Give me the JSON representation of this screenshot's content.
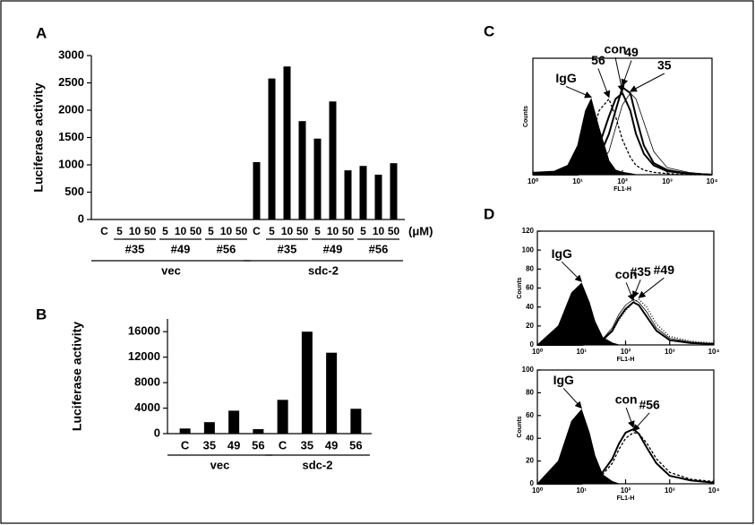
{
  "chart_data": [
    {
      "type": "bar",
      "panel": "A",
      "ylabel": "Luciferase activity",
      "color": "#000000",
      "categories": [
        "C",
        "5",
        "10",
        "50",
        "5",
        "10",
        "50",
        "5",
        "10",
        "50",
        "C",
        "5",
        "10",
        "50",
        "5",
        "10",
        "50",
        "5",
        "10",
        "50"
      ],
      "values": [
        0,
        0,
        0,
        0,
        0,
        0,
        0,
        0,
        0,
        0,
        1050,
        2580,
        2800,
        1800,
        1480,
        2160,
        900,
        980,
        820,
        1030
      ],
      "subgroups": [
        "#35",
        "#49",
        "#56",
        "#35",
        "#49",
        "#56"
      ],
      "groups": [
        "vec",
        "sdc-2"
      ],
      "unit": "(μM)",
      "ylim": [
        0,
        3000
      ],
      "yticks": [
        0,
        500,
        1000,
        1500,
        2000,
        2500,
        3000
      ]
    },
    {
      "type": "bar",
      "panel": "B",
      "ylabel": "Luciferase activity",
      "color": "#000000",
      "categories": [
        "C",
        "35",
        "49",
        "56",
        "C",
        "35",
        "49",
        "56"
      ],
      "values": [
        800,
        1800,
        3600,
        700,
        5300,
        16000,
        12700,
        3900
      ],
      "groups": [
        "vec",
        "sdc-2"
      ],
      "ylim": [
        0,
        18000
      ],
      "yticks": [
        0,
        4000,
        8000,
        12000,
        16000
      ]
    },
    {
      "type": "flow",
      "panel": "C",
      "xlabel": "FL1-H",
      "ylabel": "Counts",
      "log_x": true,
      "x": [
        1,
        3,
        6,
        10,
        15,
        20,
        30,
        50,
        70,
        100,
        150,
        200,
        300,
        500,
        1000,
        3000,
        10000
      ],
      "series": [
        {
          "name": "IgG",
          "color": "#000000",
          "style": "filled",
          "values": [
            2,
            3,
            8,
            25,
            55,
            65,
            40,
            12,
            4,
            2,
            1,
            0,
            0,
            0,
            0,
            0,
            0
          ]
        },
        {
          "name": "56",
          "color": "#000000",
          "style": "dashed",
          "values": [
            0,
            0,
            1,
            5,
            15,
            30,
            55,
            65,
            50,
            30,
            15,
            8,
            4,
            2,
            1,
            0,
            0
          ]
        },
        {
          "name": "con",
          "color": "#000000",
          "style": "solid",
          "values": [
            0,
            0,
            0,
            1,
            4,
            10,
            25,
            50,
            65,
            70,
            55,
            35,
            18,
            8,
            3,
            1,
            0
          ]
        },
        {
          "name": "49",
          "color": "#000000",
          "style": "solid",
          "values": [
            0,
            0,
            0,
            0,
            2,
            5,
            15,
            35,
            55,
            75,
            70,
            50,
            25,
            10,
            4,
            1,
            0
          ]
        },
        {
          "name": "35",
          "color": "#000000",
          "style": "thin",
          "values": [
            0,
            0,
            0,
            0,
            1,
            3,
            8,
            20,
            40,
            60,
            70,
            65,
            45,
            20,
            6,
            2,
            0
          ]
        }
      ],
      "xlim": [
        1,
        10000
      ],
      "ylim": [
        0,
        100
      ],
      "xticks": [
        {
          "value": 1,
          "label": "10⁰"
        },
        {
          "value": 10,
          "label": "10¹"
        },
        {
          "value": 100,
          "label": "10²"
        },
        {
          "value": 1000,
          "label": "10³"
        },
        {
          "value": 10000,
          "label": "10⁴"
        }
      ]
    },
    {
      "type": "flow",
      "panel": "D",
      "xlabel": "FL1-H",
      "ylabel": "Counts",
      "log_x": true,
      "x": [
        1,
        3,
        6,
        10,
        15,
        20,
        30,
        50,
        70,
        100,
        150,
        200,
        300,
        500,
        1000,
        3000,
        10000
      ],
      "series": [
        {
          "name": "IgG",
          "color": "#000000",
          "style": "filled",
          "values": [
            0,
            20,
            55,
            65,
            45,
            25,
            8,
            2,
            0,
            0,
            0,
            0,
            0,
            0,
            0,
            0,
            0
          ]
        },
        {
          "name": "con",
          "color": "#000000",
          "style": "solid",
          "values": [
            0,
            0,
            0,
            0,
            1,
            2,
            5,
            15,
            28,
            38,
            45,
            42,
            30,
            15,
            5,
            2,
            1
          ]
        },
        {
          "name": "#35",
          "color": "#000000",
          "style": "thin",
          "values": [
            0,
            0,
            0,
            0,
            1,
            2,
            6,
            18,
            32,
            42,
            48,
            45,
            35,
            18,
            7,
            3,
            1
          ]
        },
        {
          "name": "#49",
          "color": "#000000",
          "style": "dotted",
          "values": [
            0,
            0,
            0,
            0,
            1,
            2,
            5,
            14,
            26,
            36,
            45,
            48,
            40,
            22,
            9,
            4,
            2
          ]
        }
      ],
      "xlim": [
        1,
        10000
      ],
      "ylim": [
        0,
        120
      ],
      "yticks": [
        0,
        20,
        40,
        60,
        80,
        100,
        120
      ],
      "xticks": [
        {
          "value": 1,
          "label": "10⁰"
        },
        {
          "value": 10,
          "label": "10¹"
        },
        {
          "value": 100,
          "label": "10²"
        },
        {
          "value": 1000,
          "label": "10³"
        },
        {
          "value": 10000,
          "label": "10⁴"
        }
      ]
    },
    {
      "type": "flow",
      "xlabel": "FL1-H",
      "ylabel": "Counts",
      "log_x": true,
      "x": [
        1,
        3,
        6,
        10,
        15,
        20,
        30,
        50,
        70,
        100,
        150,
        200,
        300,
        500,
        1000,
        3000,
        10000
      ],
      "series": [
        {
          "name": "IgG",
          "color": "#000000",
          "style": "filled",
          "values": [
            0,
            20,
            55,
            65,
            45,
            25,
            8,
            2,
            0,
            0,
            0,
            0,
            0,
            0,
            0,
            0,
            0
          ]
        },
        {
          "name": "con",
          "color": "#000000",
          "style": "solid",
          "values": [
            0,
            0,
            0,
            0,
            2,
            4,
            10,
            22,
            35,
            45,
            48,
            44,
            32,
            18,
            7,
            3,
            1
          ]
        },
        {
          "name": "#56",
          "color": "#000000",
          "style": "dashed",
          "values": [
            0,
            0,
            0,
            0,
            1,
            3,
            8,
            18,
            30,
            40,
            45,
            44,
            36,
            22,
            10,
            4,
            2
          ]
        }
      ],
      "xlim": [
        1,
        10000
      ],
      "ylim": [
        0,
        100
      ],
      "yticks": [
        0,
        20,
        40,
        60,
        80,
        100
      ],
      "xticks": [
        {
          "value": 1,
          "label": "10⁰"
        },
        {
          "value": 10,
          "label": "10¹"
        },
        {
          "value": 100,
          "label": "10²"
        },
        {
          "value": 1000,
          "label": "10³"
        },
        {
          "value": 10000,
          "label": "10⁴"
        }
      ]
    }
  ]
}
